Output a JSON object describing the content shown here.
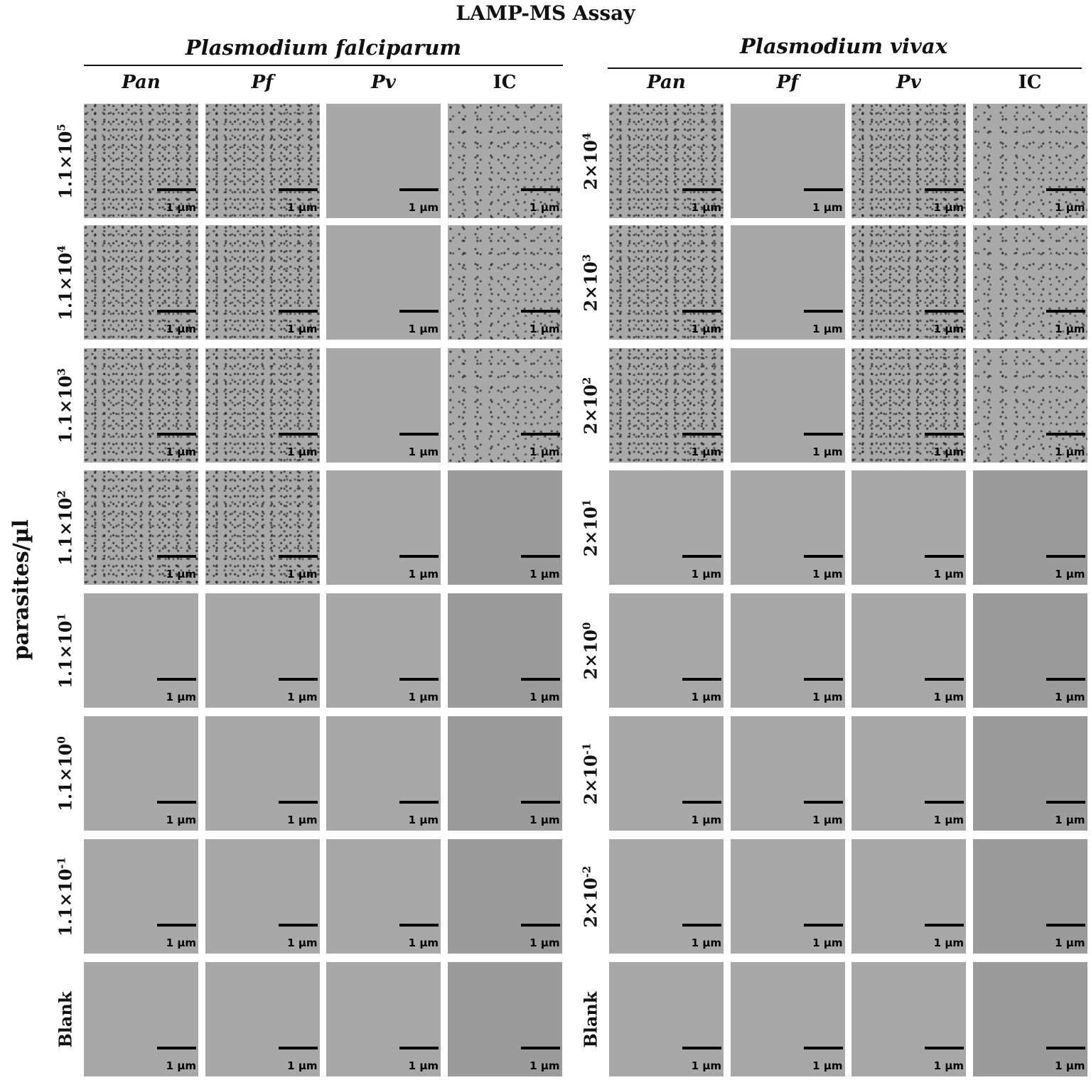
{
  "title": "LAMP-MS Assay",
  "y_axis_label": "parasites/µl",
  "scale_label": "1 µm",
  "colors": {
    "empty_light": "#a8a8a8",
    "empty_dark": "#9b9b9b",
    "positive": "#a9a9a9"
  },
  "panels": [
    {
      "species": "Plasmodium falciparum",
      "columns": [
        {
          "label": "Pan",
          "italic": true
        },
        {
          "label": "Pf",
          "italic": true
        },
        {
          "label": "Pv",
          "italic": true
        },
        {
          "label": "IC",
          "italic": false
        }
      ],
      "rows": [
        {
          "base": "1.1×10",
          "exp": "5"
        },
        {
          "base": "1.1×10",
          "exp": "4"
        },
        {
          "base": "1.1×10",
          "exp": "3"
        },
        {
          "base": "1.1×10",
          "exp": "2"
        },
        {
          "base": "1.1×10",
          "exp": "1"
        },
        {
          "base": "1.1×10",
          "exp": "0"
        },
        {
          "base": "1.1×10",
          "exp": "-1"
        },
        {
          "base": "Blank",
          "exp": ""
        }
      ],
      "positive": [
        [
          true,
          true,
          false,
          true
        ],
        [
          true,
          true,
          false,
          true
        ],
        [
          true,
          true,
          false,
          true
        ],
        [
          true,
          true,
          false,
          false
        ],
        [
          false,
          false,
          false,
          false
        ],
        [
          false,
          false,
          false,
          false
        ],
        [
          false,
          false,
          false,
          false
        ],
        [
          false,
          false,
          false,
          false
        ]
      ]
    },
    {
      "species": "Plasmodium vivax",
      "columns": [
        {
          "label": "Pan",
          "italic": true
        },
        {
          "label": "Pf",
          "italic": true
        },
        {
          "label": "Pv",
          "italic": true
        },
        {
          "label": "IC",
          "italic": false
        }
      ],
      "rows": [
        {
          "base": "2×10",
          "exp": "4"
        },
        {
          "base": "2×10",
          "exp": "3"
        },
        {
          "base": "2×10",
          "exp": "2"
        },
        {
          "base": "2×10",
          "exp": "1"
        },
        {
          "base": "2×10",
          "exp": "0"
        },
        {
          "base": "2×10",
          "exp": "-1"
        },
        {
          "base": "2×10",
          "exp": "-2"
        },
        {
          "base": "Blank",
          "exp": ""
        }
      ],
      "positive": [
        [
          true,
          false,
          true,
          true
        ],
        [
          true,
          false,
          true,
          true
        ],
        [
          true,
          false,
          true,
          true
        ],
        [
          false,
          false,
          false,
          false
        ],
        [
          false,
          false,
          false,
          false
        ],
        [
          false,
          false,
          false,
          false
        ],
        [
          false,
          false,
          false,
          false
        ],
        [
          false,
          false,
          false,
          false
        ]
      ]
    }
  ]
}
